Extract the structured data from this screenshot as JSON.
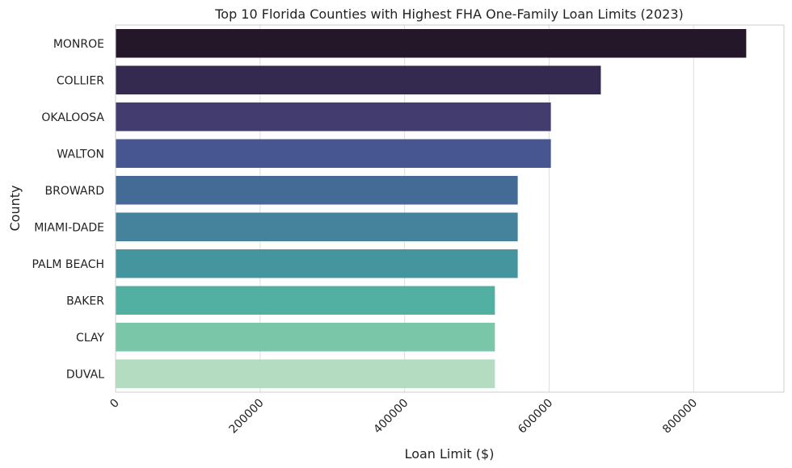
{
  "chart_data": {
    "type": "bar",
    "orientation": "horizontal",
    "title": "Top 10 Florida Counties with Highest FHA One-Family Loan Limits (2023)",
    "xlabel": "Loan Limit ($)",
    "ylabel": "County",
    "xlim": [
      0,
      925000
    ],
    "xticks": [
      "0",
      "200000",
      "400000",
      "600000",
      "800000"
    ],
    "grid": "vertical",
    "categories": [
      "MONROE",
      "COLLIER",
      "OKALOOSA",
      "WALTON",
      "BROWARD",
      "MIAMI-DADE",
      "PALM BEACH",
      "BAKER",
      "CLAY",
      "DUVAL"
    ],
    "values": [
      872850,
      671600,
      602450,
      602450,
      556600,
      556600,
      556600,
      525000,
      525000,
      525000
    ],
    "colors": [
      "#231729",
      "#342a50",
      "#433c6e",
      "#475690",
      "#436b95",
      "#45829b",
      "#45959e",
      "#52b0a3",
      "#79c7a8",
      "#b3dcc0"
    ]
  }
}
